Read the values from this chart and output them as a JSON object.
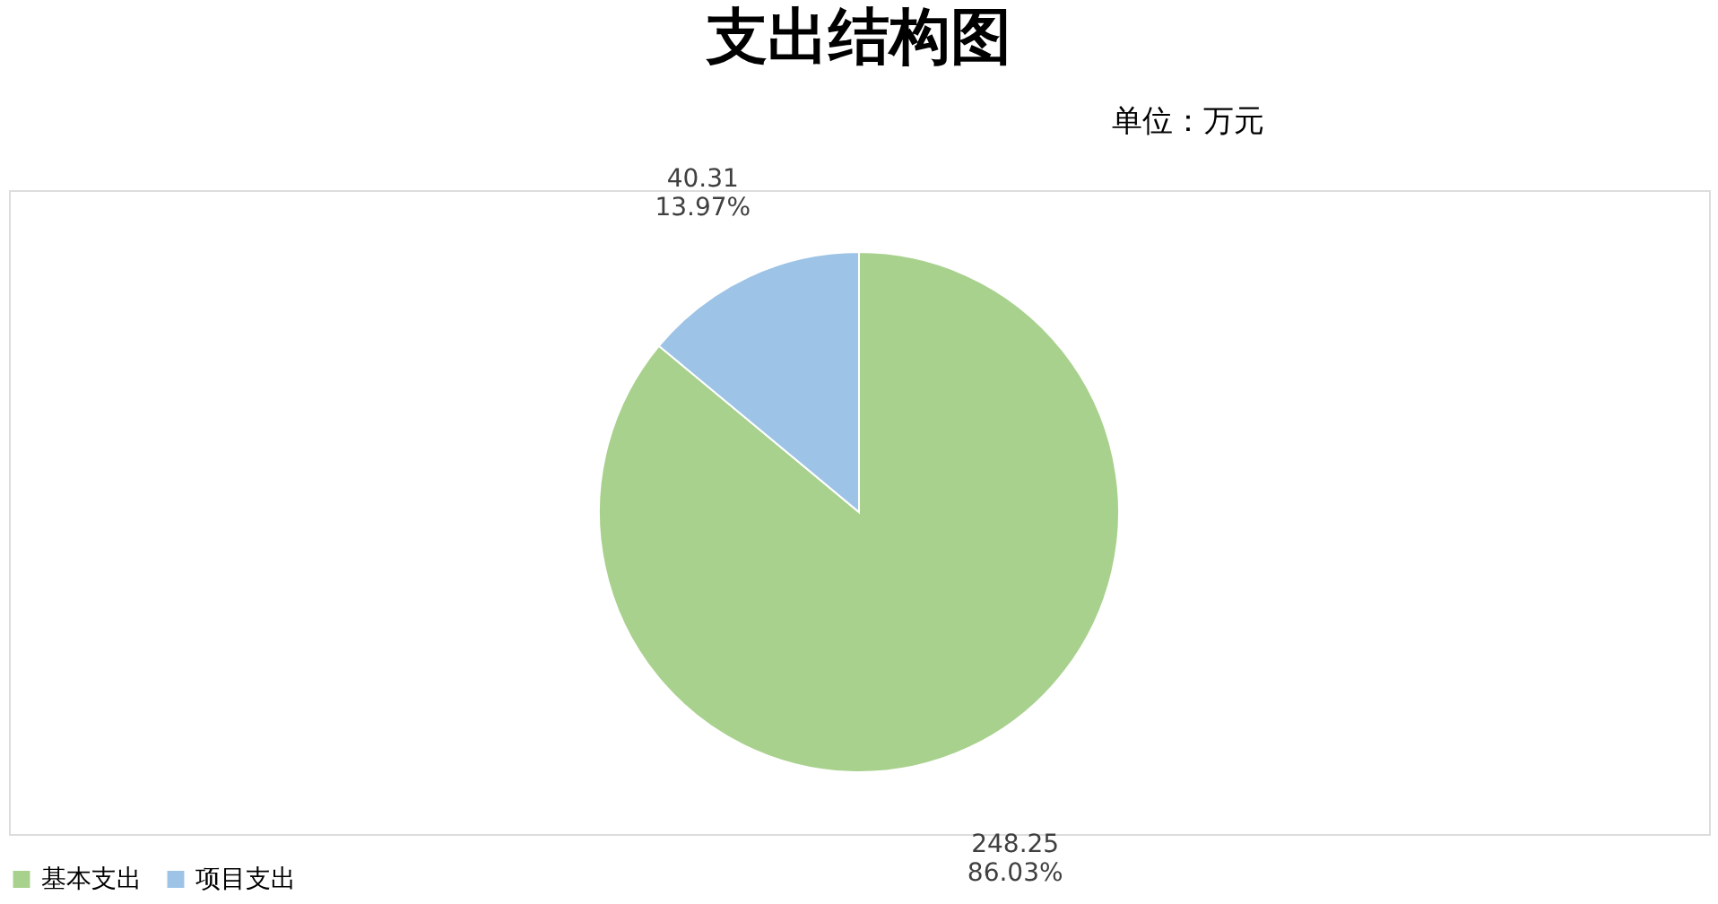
{
  "chart_data": {
    "type": "pie",
    "title": "支出结构图",
    "annotations": [
      "单位：万元"
    ],
    "categories": [
      "基本支出",
      "项目支出"
    ],
    "values": [
      248.25,
      40.31
    ],
    "colors": [
      "#a9d18e",
      "#9dc3e6"
    ],
    "value_labels": [
      "248.25\n86.03%",
      "40.31\n13.97%"
    ],
    "legend": "bottom"
  }
}
